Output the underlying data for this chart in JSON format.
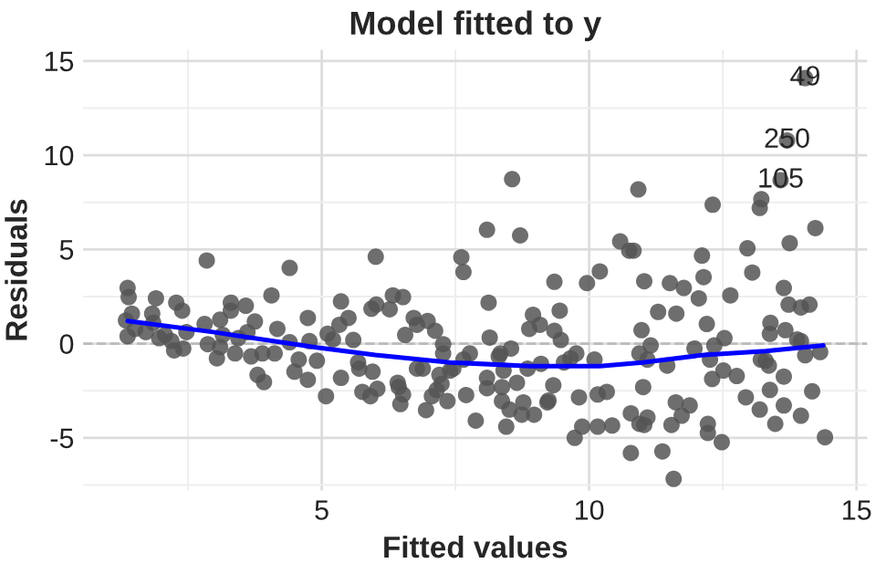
{
  "chart_data": {
    "type": "scatter",
    "title": "Model fitted to y",
    "xlabel": "Fitted values",
    "ylabel": "Residuals",
    "xlim": [
      0.54,
      15.2
    ],
    "ylim": [
      -7.8,
      15.6
    ],
    "xticks": [
      {
        "value": 2.5,
        "label": null
      },
      5,
      {
        "value": 7.5,
        "label": null
      },
      10,
      {
        "value": 12.5,
        "label": null
      },
      15
    ],
    "yticks": [
      {
        "value": -7.5,
        "label": null
      },
      -5,
      {
        "value": -2.5,
        "label": null
      },
      0,
      {
        "value": 2.5,
        "label": null
      },
      5,
      {
        "value": 7.5,
        "label": null
      },
      10,
      {
        "value": 12.5,
        "label": null
      },
      15
    ],
    "grid": true,
    "legend": false,
    "ref_lines": [
      {
        "axis": "y",
        "value": 0,
        "color": "#bbbbbb",
        "line_style": "dashed"
      }
    ],
    "annotations": [
      {
        "text": "49",
        "x": 14.04,
        "y": 14.09
      },
      {
        "text": "250",
        "x": 13.7,
        "y": 10.78
      },
      {
        "text": "105",
        "x": 13.58,
        "y": 8.67
      }
    ],
    "series": [
      {
        "color": "#555555",
        "marker": "circle",
        "x": [
          1.37,
          1.39,
          1.34,
          1.37,
          1.45,
          1.51,
          1.71,
          1.83,
          1.9,
          1.85,
          1.96,
          2.07,
          2.19,
          2.28,
          2.39,
          2.24,
          2.41,
          2.47,
          2.85,
          2.81,
          2.87,
          3.04,
          3.1,
          3.15,
          3.1,
          3.3,
          3.3,
          3.38,
          3.44,
          3.58,
          3.61,
          3.75,
          3.68,
          3.8,
          3.92,
          3.89,
          4.06,
          4.17,
          4.12,
          4.4,
          4.4,
          4.49,
          4.57,
          4.74,
          4.74,
          4.77,
          4.91,
          5.08,
          5.11,
          5.33,
          5.36,
          5.36,
          5.21,
          5.5,
          5.59,
          5.68,
          5.7,
          5.76,
          5.91,
          5.95,
          5.93,
          6.02,
          6.01,
          6.04,
          6.27,
          6.33,
          6.52,
          6.42,
          6.44,
          6.47,
          6.52,
          6.56,
          6.72,
          6.78,
          6.78,
          6.89,
          6.95,
          6.98,
          7.06,
          7.12,
          7.15,
          7.2,
          7.27,
          7.27,
          7.24,
          7.35,
          7.4,
          7.46,
          7.61,
          7.65,
          7.65,
          7.7,
          7.77,
          7.88,
          8.09,
          8.12,
          8.14,
          8.09,
          8.09,
          8.31,
          8.34,
          8.37,
          8.37,
          8.4,
          8.45,
          8.51,
          8.54,
          8.56,
          8.65,
          8.71,
          8.74,
          8.77,
          8.85,
          8.88,
          8.95,
          8.97,
          9.08,
          9.1,
          9.22,
          9.24,
          9.33,
          9.35,
          9.35,
          9.45,
          9.47,
          9.53,
          9.65,
          9.73,
          9.76,
          9.81,
          9.87,
          9.96,
          10.1,
          10.16,
          10.16,
          10.2,
          10.33,
          10.43,
          10.58,
          10.75,
          10.83,
          10.78,
          10.78,
          10.92,
          10.98,
          10.94,
          11.03,
          11.01,
          10.94,
          11.03,
          11.09,
          11.15,
          11.09,
          11.29,
          11.37,
          11.46,
          11.51,
          11.54,
          11.58,
          11.62,
          11.63,
          11.73,
          11.77,
          11.88,
          11.97,
          12.05,
          12.11,
          12.14,
          12.2,
          12.22,
          12.22,
          12.26,
          12.3,
          12.31,
          12.34,
          12.48,
          12.51,
          12.53,
          12.64,
          12.76,
          12.93,
          12.96,
          13.05,
          13.19,
          13.21,
          13.19,
          13.22,
          13.3,
          13.36,
          13.38,
          13.39,
          13.38,
          13.48,
          13.58,
          13.7,
          13.64,
          13.64,
          13.64,
          13.73,
          13.67,
          13.75,
          13.89,
          13.96,
          13.96,
          13.96,
          14.04,
          14.12,
          14.04,
          14.17,
          14.23,
          14.32,
          14.41
        ],
        "values": [
          2.95,
          2.47,
          1.23,
          0.39,
          1.59,
          0.78,
          0.61,
          1.59,
          2.4,
          1.1,
          0.29,
          0.46,
          0.13,
          2.17,
          1.75,
          -0.36,
          -0.26,
          0.61,
          4.41,
          1.04,
          -0.03,
          -0.78,
          1.27,
          0.46,
          -0.19,
          2.17,
          1.75,
          -0.52,
          0.29,
          2.01,
          0.61,
          1.17,
          -0.68,
          -1.66,
          -2.04,
          -0.52,
          2.56,
          0.78,
          -0.52,
          4.02,
          0.07,
          -1.49,
          -0.85,
          1.36,
          -1.92,
          0.13,
          -0.91,
          -2.79,
          0.52,
          1.0,
          2.24,
          -1.82,
          0.22,
          1.36,
          0.19,
          -1.0,
          -1.33,
          -2.56,
          -2.79,
          -1.49,
          1.85,
          2.07,
          4.61,
          -2.4,
          1.82,
          2.56,
          2.47,
          -2.08,
          -2.31,
          -3.21,
          -2.7,
          0.46,
          1.36,
          1.0,
          -1.33,
          -1.33,
          -3.53,
          1.2,
          -2.79,
          0.68,
          -2.46,
          -1.66,
          -0.03,
          -0.52,
          -2.14,
          -3.05,
          -1.43,
          -1.33,
          4.58,
          3.8,
          -0.85,
          -2.73,
          -0.52,
          -4.09,
          6.04,
          2.17,
          0.32,
          -1.82,
          -2.37,
          -0.68,
          -0.52,
          -2.31,
          -3.05,
          -1.43,
          -4.41,
          -3.5,
          -0.26,
          8.73,
          -2.08,
          5.74,
          -3.77,
          -3.12,
          -1.33,
          0.78,
          1.53,
          -3.77,
          1.0,
          -1.07,
          -3.12,
          -3.02,
          -2.21,
          3.28,
          0.68,
          1.75,
          0.19,
          -1.0,
          -0.78,
          -5.0,
          -0.52,
          -2.85,
          -4.41,
          3.21,
          -0.85,
          -2.7,
          -4.41,
          3.83,
          -2.56,
          -4.35,
          5.42,
          4.93,
          4.93,
          -3.7,
          -5.81,
          8.18,
          0.71,
          -0.52,
          3.31,
          -2.31,
          -4.26,
          -4.32,
          -3.92,
          -0.1,
          -0.85,
          1.68,
          -5.72,
          -1.17,
          3.21,
          -4.32,
          -7.18,
          -3.12,
          1.59,
          -3.83,
          2.95,
          -3.28,
          -0.26,
          2.4,
          4.67,
          3.53,
          1.04,
          -4.26,
          -4.74,
          -0.85,
          -1.88,
          7.37,
          -0.1,
          -5.23,
          -1.43,
          0.29,
          2.56,
          -1.72,
          -2.85,
          5.06,
          3.77,
          -3.5,
          -0.85,
          7.2,
          7.66,
          -0.91,
          -1.17,
          0.52,
          1.1,
          -2.46,
          -4.26,
          8.67,
          10.78,
          2.95,
          -1.75,
          -3.28,
          2.07,
          0.71,
          5.33,
          0.22,
          1.92,
          0.13,
          -3.83,
          14.09,
          2.07,
          -0.62,
          -2.53,
          6.13,
          -0.45,
          -4.97
        ]
      },
      {
        "type": "line",
        "color": "#0000ff",
        "marker": "none",
        "line_style": "solid",
        "x": [
          1.37,
          3,
          4.9,
          6,
          7.4,
          8.9,
          10.2,
          11,
          12.15,
          13.3,
          14.38
        ],
        "values": [
          1.2,
          0.6,
          -0.2,
          -0.6,
          -1.0,
          -1.2,
          -1.2,
          -1.0,
          -0.6,
          -0.4,
          -0.1
        ]
      }
    ]
  }
}
